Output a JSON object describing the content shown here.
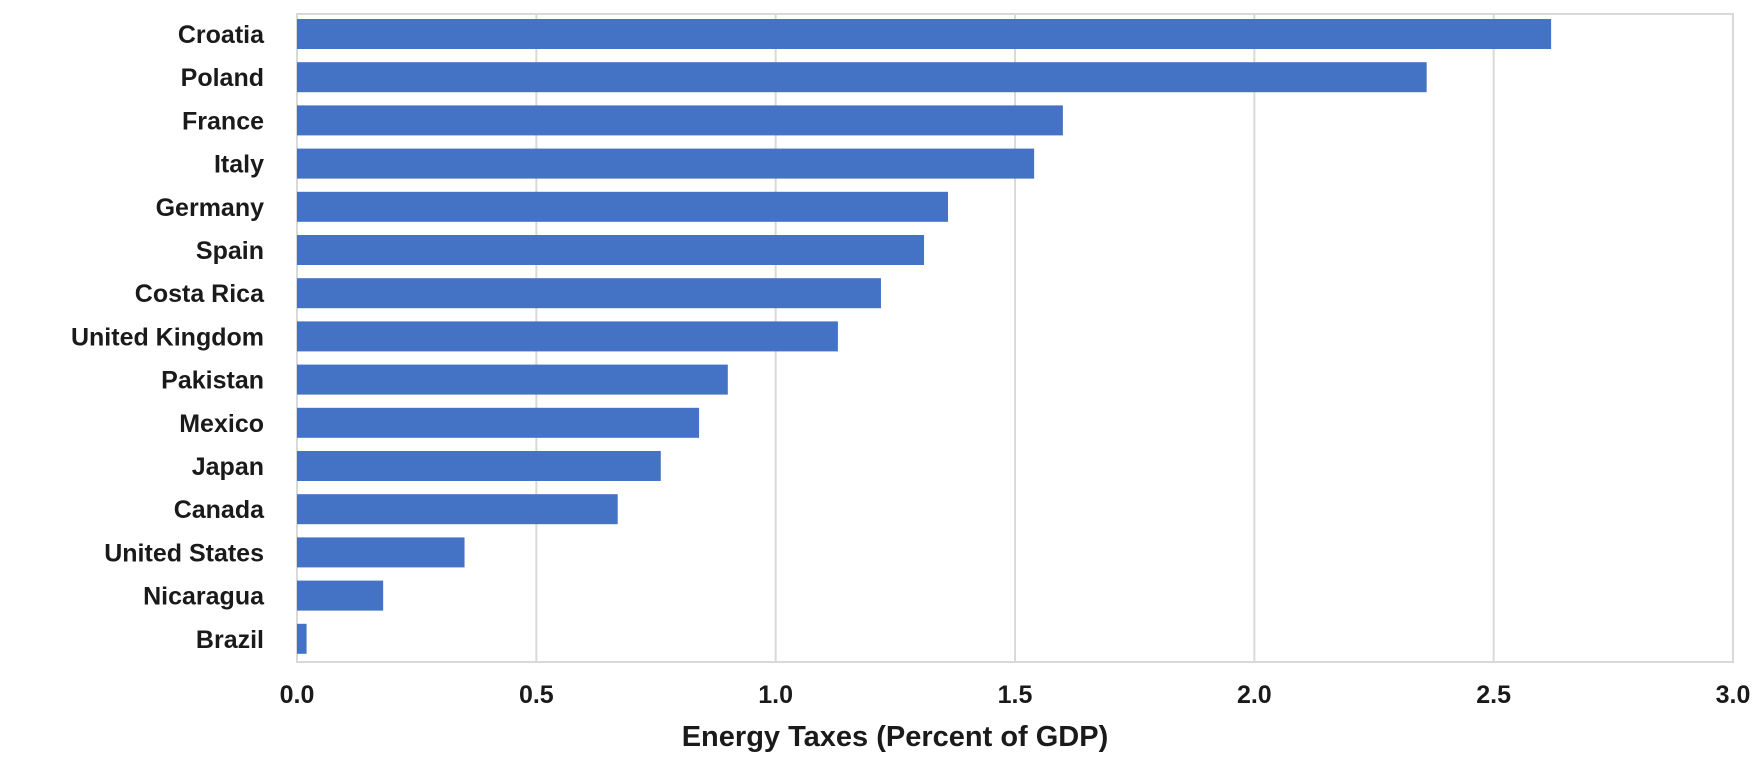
{
  "chart_data": {
    "type": "bar",
    "orientation": "horizontal",
    "categories": [
      "Croatia",
      "Poland",
      "France",
      "Italy",
      "Germany",
      "Spain",
      "Costa Rica",
      "United Kingdom",
      "Pakistan",
      "Mexico",
      "Japan",
      "Canada",
      "United States",
      "Nicaragua",
      "Brazil"
    ],
    "values": [
      2.62,
      2.36,
      1.6,
      1.54,
      1.36,
      1.31,
      1.22,
      1.13,
      0.9,
      0.84,
      0.76,
      0.67,
      0.35,
      0.18,
      0.02
    ],
    "xlabel": "Energy Taxes (Percent of GDP)",
    "ylabel": "",
    "xlim": [
      0,
      3.0
    ],
    "xticks": [
      "0.0",
      "0.5",
      "1.0",
      "1.5",
      "2.0",
      "2.5",
      "3.0"
    ],
    "grid": true,
    "bar_color": "#4472c4"
  }
}
